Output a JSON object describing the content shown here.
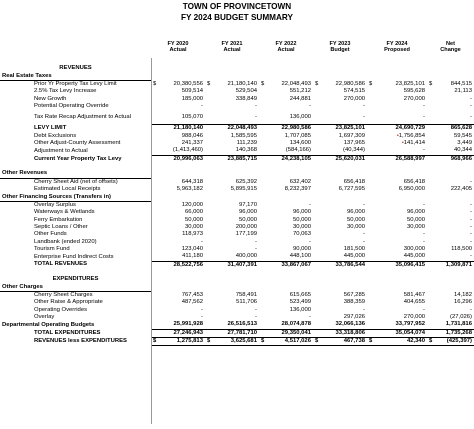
{
  "title": "TOWN OF PROVINCETOWN",
  "subtitle": "FY 2024 BUDGET SUMMARY",
  "columns": [
    {
      "line1": "FY 2020",
      "line2": "Actual"
    },
    {
      "line1": "FY 2021",
      "line2": "Actual"
    },
    {
      "line1": "FY 2022",
      "line2": "Actual"
    },
    {
      "line1": "FY 2023",
      "line2": "Budget"
    },
    {
      "line1": "FY 2024",
      "line2": "Proposed"
    },
    {
      "line1": "Net",
      "line2": "Change"
    }
  ],
  "rows": [
    {
      "label": "",
      "indent": 0,
      "style": "blank",
      "values": []
    },
    {
      "label": "REVENUES",
      "indent": 0,
      "style": "center",
      "values": []
    },
    {
      "label": "Real Estate Taxes",
      "indent": 0,
      "style": "section",
      "values": []
    },
    {
      "label": "Prior Yr Property Tax Levy Limit",
      "indent": 1,
      "style": "normal",
      "dollar": true,
      "values": [
        "20,380,556",
        "21,180,140",
        "22,048,493",
        "22,980,586",
        "23,825,101",
        "844,515"
      ]
    },
    {
      "label": "2.5% Tax Levy Increase",
      "indent": 1,
      "style": "normal",
      "values": [
        "509,514",
        "529,504",
        "551,212",
        "574,515",
        "595,628",
        "21,113"
      ]
    },
    {
      "label": "New Growth",
      "indent": 1,
      "style": "normal",
      "values": [
        "185,000",
        "338,849",
        "244,881",
        "270,000",
        "270,000",
        "-"
      ]
    },
    {
      "label": "Potential Operating Override",
      "indent": 1,
      "style": "normal",
      "values": [
        "-",
        "-",
        "-",
        "-",
        "-",
        "-"
      ]
    },
    {
      "label": "Tax Rate Recap Adjustment to Actual",
      "indent": 1,
      "style": "two-line",
      "values": [
        "105,070",
        "-",
        "136,000",
        "-",
        "-",
        "-"
      ]
    },
    {
      "label": "LEVY LIMIT",
      "indent": 1,
      "style": "topline",
      "values": [
        "21,180,140",
        "22,048,493",
        "22,980,586",
        "23,825,101",
        "24,690,729",
        "865,628"
      ]
    },
    {
      "label": "Debt Exclusions",
      "indent": 1,
      "style": "normal",
      "values": [
        "988,046",
        "1,585,595",
        "1,707,085",
        "1,697,309",
        "1,756,854",
        "59,545"
      ],
      "mark_col": 4
    },
    {
      "label": "Other Adjust-County Assessment",
      "indent": 1,
      "style": "normal",
      "values": [
        "241,337",
        "111,239",
        "134,600",
        "137,965",
        "141,414",
        "3,449"
      ],
      "mark_col": 4
    },
    {
      "label": "Adjustment to Actual",
      "indent": 1,
      "style": "normal",
      "values": [
        "(1,413,460)",
        "140,368",
        "(584,166)",
        "(40,344)",
        "-",
        "40,344"
      ]
    },
    {
      "label": "Current Year Property Tax Levy",
      "indent": 1,
      "style": "total",
      "values": [
        "20,996,063",
        "23,885,715",
        "24,238,105",
        "25,620,031",
        "26,588,997",
        "968,966"
      ]
    },
    {
      "label": "",
      "indent": 0,
      "style": "blank",
      "values": []
    },
    {
      "label": "Other Revenues",
      "indent": 0,
      "style": "section",
      "values": []
    },
    {
      "label": "Cherry Sheet Aid (net of offsets)",
      "indent": 1,
      "style": "normal",
      "values": [
        "644,318",
        "625,392",
        "632,402",
        "656,418",
        "656,418",
        "-"
      ]
    },
    {
      "label": "Estimated Local Receipts",
      "indent": 1,
      "style": "normal",
      "values": [
        "5,963,182",
        "5,895,915",
        "8,232,397",
        "6,727,595",
        "6,950,000",
        "222,405"
      ]
    },
    {
      "label": "Other Financing Sources (Transfers in)",
      "indent": 0,
      "style": "section",
      "values": []
    },
    {
      "label": "Overlay Surplus",
      "indent": 1,
      "style": "normal",
      "values": [
        "120,000",
        "97,170",
        "-",
        "-",
        "-",
        "-"
      ]
    },
    {
      "label": "Waterways & Wetlands",
      "indent": 1,
      "style": "normal",
      "values": [
        "66,000",
        "96,000",
        "96,000",
        "96,000",
        "96,000",
        "-"
      ]
    },
    {
      "label": "Ferry Embarkation",
      "indent": 1,
      "style": "normal",
      "values": [
        "50,000",
        "50,000",
        "50,000",
        "50,000",
        "50,000",
        "-"
      ]
    },
    {
      "label": "Septic Loans / Other",
      "indent": 1,
      "style": "normal",
      "values": [
        "30,000",
        "200,000",
        "30,000",
        "30,000",
        "30,000",
        "-"
      ]
    },
    {
      "label": "Other Funds",
      "indent": 1,
      "style": "normal",
      "values": [
        "118,973",
        "177,199",
        "70,063",
        "-",
        "-",
        "-"
      ]
    },
    {
      "label": "Landbank (ended 2020)",
      "indent": 1,
      "style": "normal",
      "values": [
        "-",
        "-",
        "-",
        "-",
        "-",
        "-"
      ]
    },
    {
      "label": "Tourism Fund",
      "indent": 1,
      "style": "normal",
      "values": [
        "123,040",
        "-",
        "90,000",
        "181,500",
        "300,000",
        "118,500"
      ]
    },
    {
      "label": "Enterprise Fund Indirect Costs",
      "indent": 1,
      "style": "normal",
      "values": [
        "411,180",
        "400,000",
        "448,100",
        "445,000",
        "445,000",
        "-"
      ]
    },
    {
      "label": "TOTAL REVENUES",
      "indent": 1,
      "style": "total",
      "values": [
        "28,522,756",
        "31,407,391",
        "33,867,067",
        "33,786,544",
        "35,096,415",
        "1,309,871"
      ]
    },
    {
      "label": "",
      "indent": 0,
      "style": "blank",
      "values": []
    },
    {
      "label": "EXPENDITURES",
      "indent": 0,
      "style": "center",
      "values": []
    },
    {
      "label": "Other Charges",
      "indent": 0,
      "style": "section",
      "values": []
    },
    {
      "label": "Cherry Sheet Charges",
      "indent": 1,
      "style": "normal",
      "values": [
        "767,453",
        "758,491",
        "615,665",
        "567,285",
        "581,467",
        "14,182"
      ]
    },
    {
      "label": "Other Raise & Appropriate",
      "indent": 1,
      "style": "normal",
      "values": [
        "487,562",
        "511,706",
        "523,499",
        "388,359",
        "404,655",
        "16,296"
      ]
    },
    {
      "label": "Operating Overrides",
      "indent": 1,
      "style": "normal",
      "values": [
        "-",
        "-",
        "136,000",
        "-",
        "-",
        "-"
      ]
    },
    {
      "label": "Overlay",
      "indent": 1,
      "style": "normal",
      "values": [
        "-",
        "-",
        "-",
        "297,026",
        "270,000",
        "(27,026)"
      ]
    },
    {
      "label": "Departmental Operating Budgets",
      "indent": 0,
      "style": "bold",
      "values": [
        "25,991,928",
        "26,516,513",
        "28,074,878",
        "32,066,136",
        "33,797,952",
        "1,731,816"
      ]
    },
    {
      "label": "TOTAL EXPENDITURES",
      "indent": 1,
      "style": "total",
      "values": [
        "27,246,943",
        "27,781,710",
        "29,350,041",
        "33,318,806",
        "35,054,074",
        "1,735,268"
      ]
    },
    {
      "label": "REVENUES less EXPENDITURES",
      "indent": 1,
      "style": "grand",
      "dollar": true,
      "values": [
        "1,275,813",
        "3,625,681",
        "4,517,026",
        "467,738",
        "42,340",
        "(425,397)"
      ]
    }
  ],
  "colors": {
    "text": "#000000",
    "mark": "#c00000",
    "grid": "#999999"
  }
}
